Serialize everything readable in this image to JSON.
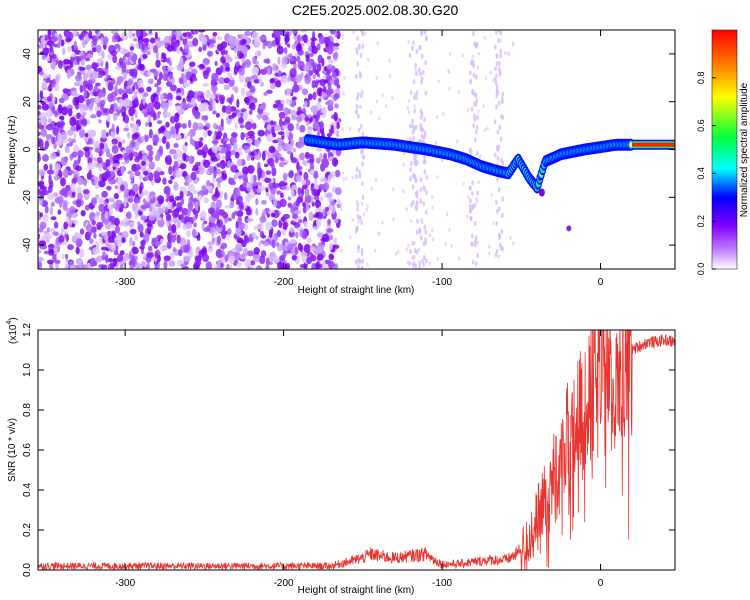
{
  "title": "C2E5.2025.002.08.30.G20",
  "chart_data": [
    {
      "type": "heatmap",
      "xlabel": "Height of straight line (km)",
      "ylabel": "Frequency (Hz)",
      "xlim": [
        -355,
        47
      ],
      "ylim": [
        -50,
        50
      ],
      "xticks": [
        -300,
        -200,
        -100,
        0
      ],
      "yticks": [
        -40,
        -20,
        0,
        20,
        40
      ],
      "colorbar": {
        "label": "Normalized spectral amplitude",
        "range": [
          0,
          1
        ],
        "ticks": [
          "0.0",
          "0.2",
          "0.4",
          "0.6",
          "0.8"
        ]
      },
      "signal_track": [
        {
          "x": -185,
          "y": 4
        },
        {
          "x": -165,
          "y": 2
        },
        {
          "x": -150,
          "y": 3
        },
        {
          "x": -130,
          "y": 2
        },
        {
          "x": -110,
          "y": 0
        },
        {
          "x": -95,
          "y": -2
        },
        {
          "x": -85,
          "y": -4
        },
        {
          "x": -75,
          "y": -7
        },
        {
          "x": -65,
          "y": -9
        },
        {
          "x": -58,
          "y": -10
        },
        {
          "x": -52,
          "y": -4
        },
        {
          "x": -45,
          "y": -12
        },
        {
          "x": -40,
          "y": -16
        },
        {
          "x": -35,
          "y": -5
        },
        {
          "x": -25,
          "y": -2
        },
        {
          "x": -10,
          "y": 0
        },
        {
          "x": 0,
          "y": 1
        },
        {
          "x": 10,
          "y": 2
        },
        {
          "x": 20,
          "y": 2
        },
        {
          "x": 47,
          "y": 2
        }
      ],
      "noise_region": {
        "x_from": -355,
        "x_to": -165
      }
    },
    {
      "type": "line",
      "xlabel": "Height of straight line (km)",
      "ylabel": "SNR (10 * v/v)",
      "scale_label": "(x10",
      "scale_exp": "4",
      "scale_close": ")",
      "xlim": [
        -355,
        47
      ],
      "ylim": [
        0,
        1.2
      ],
      "xticks": [
        -300,
        -200,
        -100,
        0
      ],
      "yticks": [
        "0.0",
        "0.2",
        "0.4",
        "0.6",
        "0.8",
        "1.0",
        "1.2"
      ],
      "color": "#e8332e",
      "series": [
        {
          "x": [
            -355,
            -300,
            -250,
            -200,
            -170,
            -160,
            -150,
            -145,
            -140,
            -130,
            -120,
            -110,
            -105,
            -100,
            -90,
            -80,
            -70,
            -60,
            -55,
            -50,
            -45,
            -40,
            -35,
            -30,
            -25,
            -20,
            -15,
            -10,
            -5,
            0,
            5,
            10,
            15,
            20,
            25,
            30,
            35,
            40,
            47
          ],
          "values": [
            0.02,
            0.02,
            0.02,
            0.02,
            0.02,
            0.04,
            0.06,
            0.08,
            0.07,
            0.06,
            0.07,
            0.08,
            0.05,
            0.03,
            0.03,
            0.04,
            0.05,
            0.05,
            0.07,
            0.1,
            0.15,
            0.25,
            0.35,
            0.45,
            0.55,
            0.65,
            0.72,
            0.8,
            0.9,
            0.95,
            1.0,
            1.05,
            1.08,
            1.1,
            1.12,
            1.14,
            1.14,
            1.15,
            1.14
          ]
        }
      ]
    }
  ]
}
